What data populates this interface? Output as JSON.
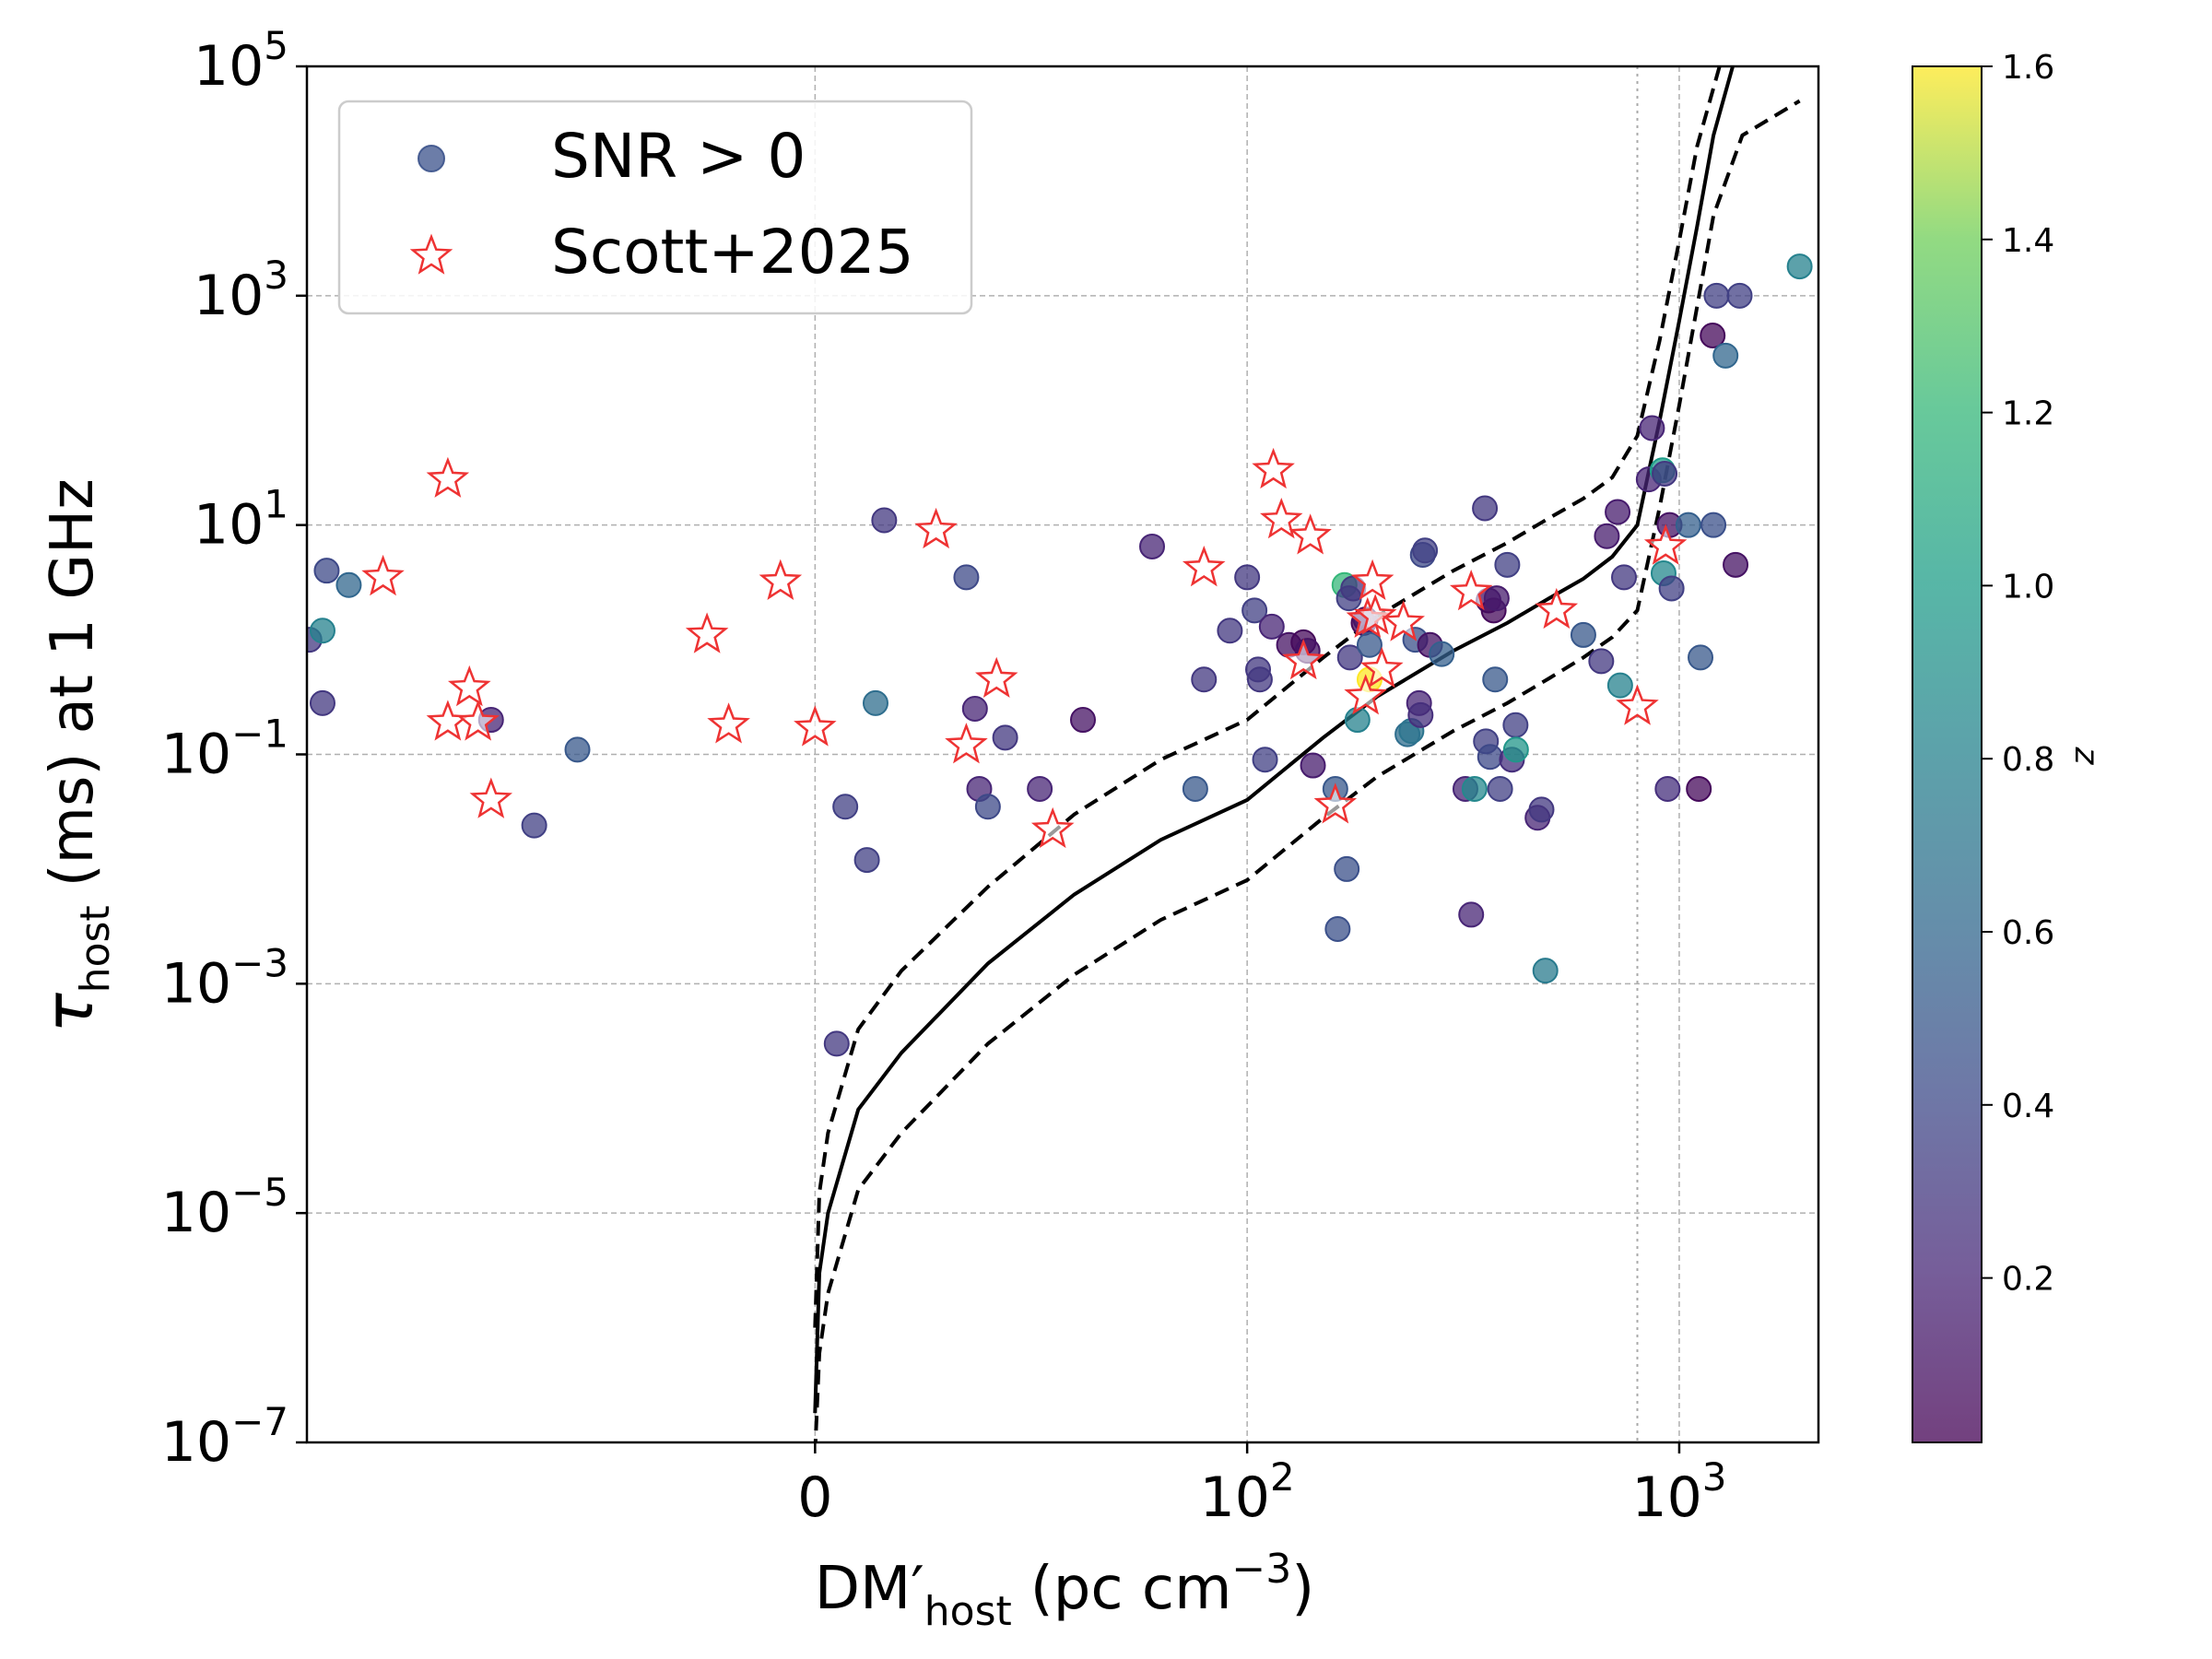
{
  "chart_data": {
    "type": "scatter",
    "xlabel": {
      "main": "DM",
      "prime": "′",
      "sub": "host",
      "units": "(pc cm",
      "exp": "−3",
      "close": ")"
    },
    "ylabel": {
      "main": "τ",
      "sub": "host",
      "rest": "(ms) at 1 GHz"
    },
    "x_scale": "symlog",
    "y_scale": "log",
    "xlim": [
      -150,
      2100
    ],
    "ylim": [
      1e-07,
      100000.0
    ],
    "x_ticks": [
      {
        "value": 0,
        "label": "0"
      },
      {
        "value": 100,
        "base": "10",
        "exp": "2"
      },
      {
        "value": 1000,
        "base": "10",
        "exp": "3"
      }
    ],
    "y_ticks": [
      {
        "value": 1e-07,
        "base": "10",
        "exp": "−7"
      },
      {
        "value": 1e-05,
        "base": "10",
        "exp": "−5"
      },
      {
        "value": 0.001,
        "base": "10",
        "exp": "−3"
      },
      {
        "value": 0.1,
        "base": "10",
        "exp": "−1"
      },
      {
        "value": 10,
        "base": "10",
        "exp": "1"
      },
      {
        "value": 1000,
        "base": "10",
        "exp": "3"
      },
      {
        "value": 100000,
        "base": "10",
        "exp": "5"
      }
    ],
    "grid": true,
    "vertical_dotted_line_x": 800,
    "legend": {
      "location": "upper-left",
      "entries": [
        {
          "label": "SNR > 0",
          "marker": "circle",
          "color": "#3b528b"
        },
        {
          "label": "Scott+2025",
          "marker": "star",
          "color": "#ee3333"
        }
      ]
    },
    "colorbar": {
      "label": "z",
      "range": [
        0.01,
        1.6
      ],
      "ticks": [
        "0.2",
        "0.4",
        "0.6",
        "0.8",
        "1.0",
        "1.2",
        "1.4",
        "1.6"
      ],
      "colormap": "viridis"
    },
    "curves": [
      {
        "name": "model",
        "style": "solid",
        "points": [
          [
            0,
            1.8e-07
          ],
          [
            1,
            3e-06
          ],
          [
            3,
            1e-05
          ],
          [
            10,
            8e-05
          ],
          [
            20,
            0.00025
          ],
          [
            40,
            0.0015
          ],
          [
            60,
            0.006
          ],
          [
            80,
            0.018
          ],
          [
            100,
            0.04
          ],
          [
            150,
            0.14
          ],
          [
            200,
            0.32
          ],
          [
            300,
            0.8
          ],
          [
            400,
            1.4
          ],
          [
            500,
            2.3
          ],
          [
            600,
            3.4
          ],
          [
            700,
            5.3
          ],
          [
            800,
            10
          ],
          [
            900,
            80
          ],
          [
            1000,
            600
          ],
          [
            1100,
            4000
          ],
          [
            1200,
            25000.0
          ],
          [
            1330,
            100000.0
          ]
        ]
      },
      {
        "name": "upper",
        "style": "dashed",
        "points": [
          [
            0,
            1e-06
          ],
          [
            1,
            1.5e-05
          ],
          [
            3,
            5e-05
          ],
          [
            10,
            0.0004
          ],
          [
            20,
            0.0013
          ],
          [
            40,
            0.007
          ],
          [
            60,
            0.03
          ],
          [
            80,
            0.09
          ],
          [
            100,
            0.2
          ],
          [
            150,
            0.7
          ],
          [
            200,
            1.6
          ],
          [
            300,
            4
          ],
          [
            400,
            7
          ],
          [
            500,
            11.5
          ],
          [
            600,
            17
          ],
          [
            700,
            26
          ],
          [
            800,
            60
          ],
          [
            900,
            400
          ],
          [
            1000,
            3000
          ],
          [
            1100,
            20000.0
          ],
          [
            1240,
            100000.0
          ]
        ]
      },
      {
        "name": "lower",
        "style": "dashed",
        "points": [
          [
            0,
            8e-08
          ],
          [
            1,
            6e-07
          ],
          [
            3,
            2e-06
          ],
          [
            10,
            1.6e-05
          ],
          [
            20,
            5e-05
          ],
          [
            40,
            0.0003
          ],
          [
            60,
            0.0012
          ],
          [
            80,
            0.0036
          ],
          [
            100,
            0.008
          ],
          [
            150,
            0.028
          ],
          [
            200,
            0.064
          ],
          [
            300,
            0.16
          ],
          [
            400,
            0.28
          ],
          [
            500,
            0.46
          ],
          [
            600,
            0.7
          ],
          [
            700,
            1.05
          ],
          [
            800,
            1.8
          ],
          [
            900,
            14
          ],
          [
            1000,
            110
          ],
          [
            1100,
            800
          ],
          [
            1200,
            5000
          ],
          [
            1400,
            25000.0
          ],
          [
            1900,
            50000.0
          ]
        ]
      }
    ],
    "snr_points": [
      [
        -148,
        1.0,
        0.3
      ],
      [
        -138,
        0.28,
        0.3
      ],
      [
        -135,
        4.0,
        0.4
      ],
      [
        -138,
        1.2,
        0.8
      ],
      [
        -120,
        3.0,
        0.6
      ],
      [
        -75,
        0.2,
        0.2
      ],
      [
        -65,
        0.024,
        0.35
      ],
      [
        -55,
        0.11,
        0.5
      ],
      [
        5,
        0.0003,
        0.3
      ],
      [
        7,
        0.035,
        0.35
      ],
      [
        12,
        0.012,
        0.35
      ],
      [
        14,
        0.28,
        0.65
      ],
      [
        16,
        11,
        0.3
      ],
      [
        35,
        3.5,
        0.4
      ],
      [
        37,
        0.25,
        0.2
      ],
      [
        38,
        0.05,
        0.2
      ],
      [
        40,
        0.035,
        0.4
      ],
      [
        44,
        0.14,
        0.3
      ],
      [
        52,
        0.05,
        0.2
      ],
      [
        62,
        0.2,
        0.1
      ],
      [
        78,
        6.5,
        0.2
      ],
      [
        88,
        0.05,
        0.5
      ],
      [
        90,
        0.45,
        0.3
      ],
      [
        96,
        1.2,
        0.3
      ],
      [
        100,
        3.5,
        0.3
      ],
      [
        104,
        1.8,
        0.35
      ],
      [
        106,
        0.55,
        0.3
      ],
      [
        107,
        0.45,
        0.3
      ],
      [
        110,
        0.09,
        0.35
      ],
      [
        114,
        1.3,
        0.2
      ],
      [
        125,
        0.9,
        0.1
      ],
      [
        135,
        0.95,
        0.05
      ],
      [
        138,
        0.8,
        0.1
      ],
      [
        142,
        0.08,
        0.15
      ],
      [
        160,
        0.05,
        0.5
      ],
      [
        162,
        0.003,
        0.45
      ],
      [
        168,
        3.0,
        1.2
      ],
      [
        170,
        0.01,
        0.45
      ],
      [
        172,
        2.3,
        0.35
      ],
      [
        173,
        0.7,
        0.3
      ],
      [
        176,
        2.8,
        0.3
      ],
      [
        180,
        0.2,
        0.8
      ],
      [
        186,
        1.4,
        0.05
      ],
      [
        188,
        1.5,
        0.1
      ],
      [
        192,
        0.9,
        0.5
      ],
      [
        192,
        0.45,
        1.6
      ],
      [
        235,
        0.15,
        0.65
      ],
      [
        240,
        0.16,
        0.7
      ],
      [
        245,
        1.0,
        0.45
      ],
      [
        250,
        0.28,
        0.2
      ],
      [
        252,
        0.22,
        0.25
      ],
      [
        255,
        5.5,
        0.4
      ],
      [
        258,
        6.0,
        0.35
      ],
      [
        265,
        0.9,
        0.1
      ],
      [
        282,
        0.75,
        0.55
      ],
      [
        320,
        0.05,
        0.2
      ],
      [
        330,
        0.004,
        0.2
      ],
      [
        336,
        0.05,
        0.85
      ],
      [
        355,
        14,
        0.3
      ],
      [
        357,
        0.13,
        0.35
      ],
      [
        362,
        2.2,
        0.1
      ],
      [
        365,
        0.095,
        0.4
      ],
      [
        372,
        1.8,
        0.05
      ],
      [
        375,
        0.45,
        0.5
      ],
      [
        378,
        2.3,
        0.15
      ],
      [
        385,
        0.05,
        0.35
      ],
      [
        400,
        4.5,
        0.35
      ],
      [
        410,
        0.09,
        0.25
      ],
      [
        418,
        0.18,
        0.35
      ],
      [
        419,
        0.11,
        0.95
      ],
      [
        470,
        0.028,
        0.2
      ],
      [
        480,
        0.033,
        0.3
      ],
      [
        490,
        0.0013,
        0.75
      ],
      [
        600,
        1.1,
        0.5
      ],
      [
        660,
        0.65,
        0.3
      ],
      [
        680,
        8,
        0.15
      ],
      [
        720,
        13,
        0.15
      ],
      [
        730,
        0.4,
        0.8
      ],
      [
        745,
        3.5,
        0.3
      ],
      [
        850,
        25,
        0.2
      ],
      [
        865,
        70,
        0.2
      ],
      [
        915,
        30,
        1.0
      ],
      [
        920,
        3.8,
        0.85
      ],
      [
        925,
        28,
        0.3
      ],
      [
        940,
        0.05,
        0.25
      ],
      [
        950,
        10,
        0.1
      ],
      [
        960,
        2.8,
        0.35
      ],
      [
        1050,
        10,
        0.55
      ],
      [
        1110,
        0.05,
        0.05
      ],
      [
        1120,
        0.7,
        0.5
      ],
      [
        1195,
        450,
        0.05
      ],
      [
        1200,
        10,
        0.45
      ],
      [
        1220,
        1000,
        0.35
      ],
      [
        1280,
        300,
        0.6
      ],
      [
        1350,
        4.5,
        0.1
      ],
      [
        1380,
        1000,
        0.35
      ],
      [
        1900,
        1800,
        0.8
      ]
    ],
    "scott_points": [
      [
        -85,
        25
      ],
      [
        -85,
        0.19
      ],
      [
        -80,
        0.38
      ],
      [
        -78,
        0.19
      ],
      [
        -75,
        0.04
      ],
      [
        -100,
        3.5
      ],
      [
        -25,
        1.1
      ],
      [
        -20,
        0.18
      ],
      [
        -8,
        3.2
      ],
      [
        0,
        0.17
      ],
      [
        28,
        9
      ],
      [
        35,
        0.12
      ],
      [
        42,
        0.45
      ],
      [
        55,
        0.022
      ],
      [
        90,
        4.2
      ],
      [
        115,
        30
      ],
      [
        120,
        11
      ],
      [
        135,
        0.65
      ],
      [
        140,
        8
      ],
      [
        160,
        0.036
      ],
      [
        188,
        0.32
      ],
      [
        190,
        1.5
      ],
      [
        195,
        3.2
      ],
      [
        198,
        1.6
      ],
      [
        205,
        0.55
      ],
      [
        230,
        1.4
      ],
      [
        330,
        2.6
      ],
      [
        520,
        1.8
      ],
      [
        800,
        0.26
      ],
      [
        930,
        6.5
      ]
    ]
  }
}
